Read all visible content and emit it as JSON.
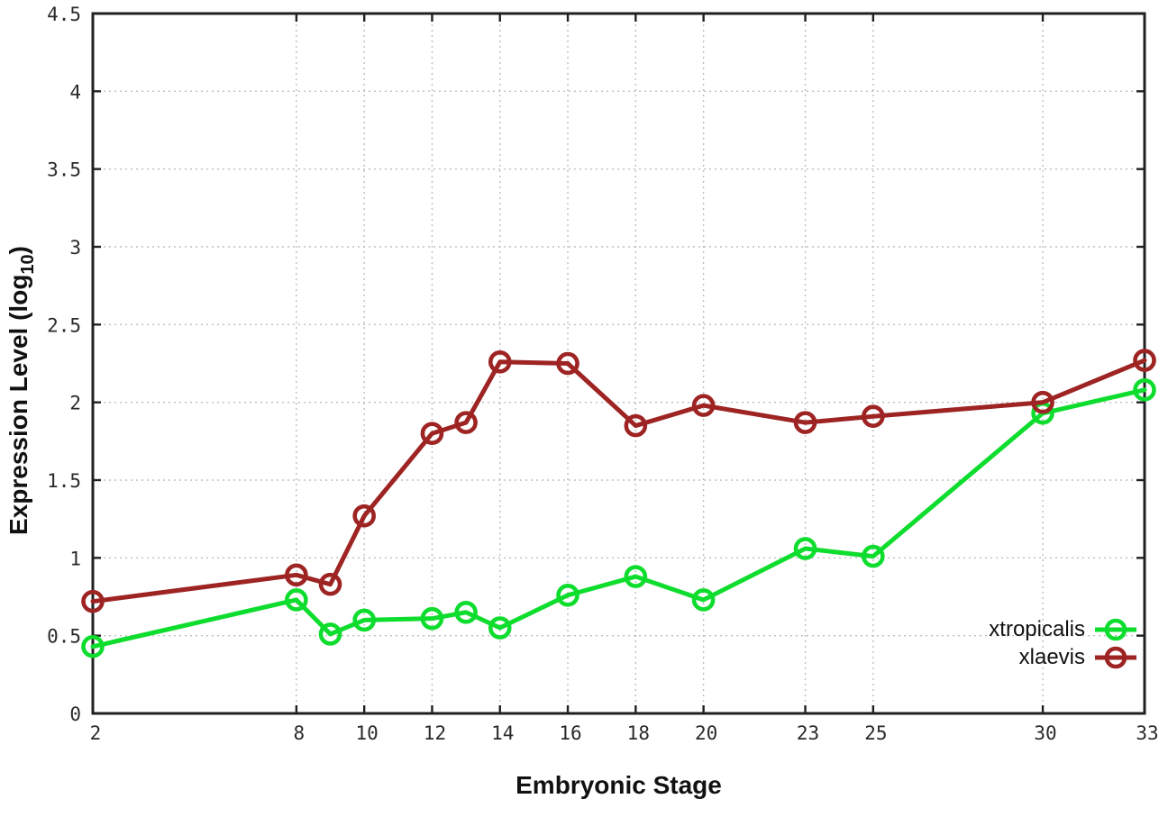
{
  "chart_data": {
    "type": "line",
    "title": "",
    "xlabel": "Embryonic Stage",
    "ylabel": "Expression Level (log10)",
    "ylabel_parts": {
      "main": "Expression Level (log",
      "sub": "10",
      "end": ")"
    },
    "xlim": [
      2,
      33
    ],
    "ylim": [
      0,
      4.5
    ],
    "grid": true,
    "legend_position": "bottom-right-inside",
    "x": [
      2,
      8,
      9,
      10,
      12,
      13,
      14,
      16,
      18,
      20,
      23,
      25,
      30,
      33
    ],
    "x_ticks": [
      2,
      8,
      10,
      12,
      14,
      16,
      18,
      20,
      23,
      25,
      30,
      33
    ],
    "x_tick_labels": [
      "2",
      "8",
      "10",
      "12",
      "14",
      "16",
      "18",
      "20",
      "23",
      "25",
      "30",
      "33"
    ],
    "y_ticks": [
      0,
      0.5,
      1,
      1.5,
      2,
      2.5,
      3,
      3.5,
      4,
      4.5
    ],
    "y_tick_labels": [
      "0",
      "0.5",
      "1",
      "1.5",
      "2",
      "2.5",
      "3",
      "3.5",
      "4",
      "4.5"
    ],
    "series": [
      {
        "name": "xtropicalis",
        "color": "#0edd2e",
        "marker": "open-circle",
        "values": [
          0.43,
          0.73,
          0.51,
          0.6,
          0.61,
          0.65,
          0.55,
          0.76,
          0.88,
          0.73,
          1.06,
          1.01,
          1.93,
          2.08
        ]
      },
      {
        "name": "xlaevis",
        "color": "#9e2423",
        "marker": "open-circle",
        "values": [
          0.72,
          0.89,
          0.83,
          1.27,
          1.8,
          1.87,
          2.26,
          2.25,
          1.85,
          1.98,
          1.87,
          1.91,
          2.0,
          2.27
        ]
      }
    ]
  },
  "style": {
    "background": "#ffffff",
    "axis_color": "#202020",
    "grid_color": "#bdbdbd",
    "tick_label_color": "#2a2a2a",
    "text_color": "#111111"
  }
}
